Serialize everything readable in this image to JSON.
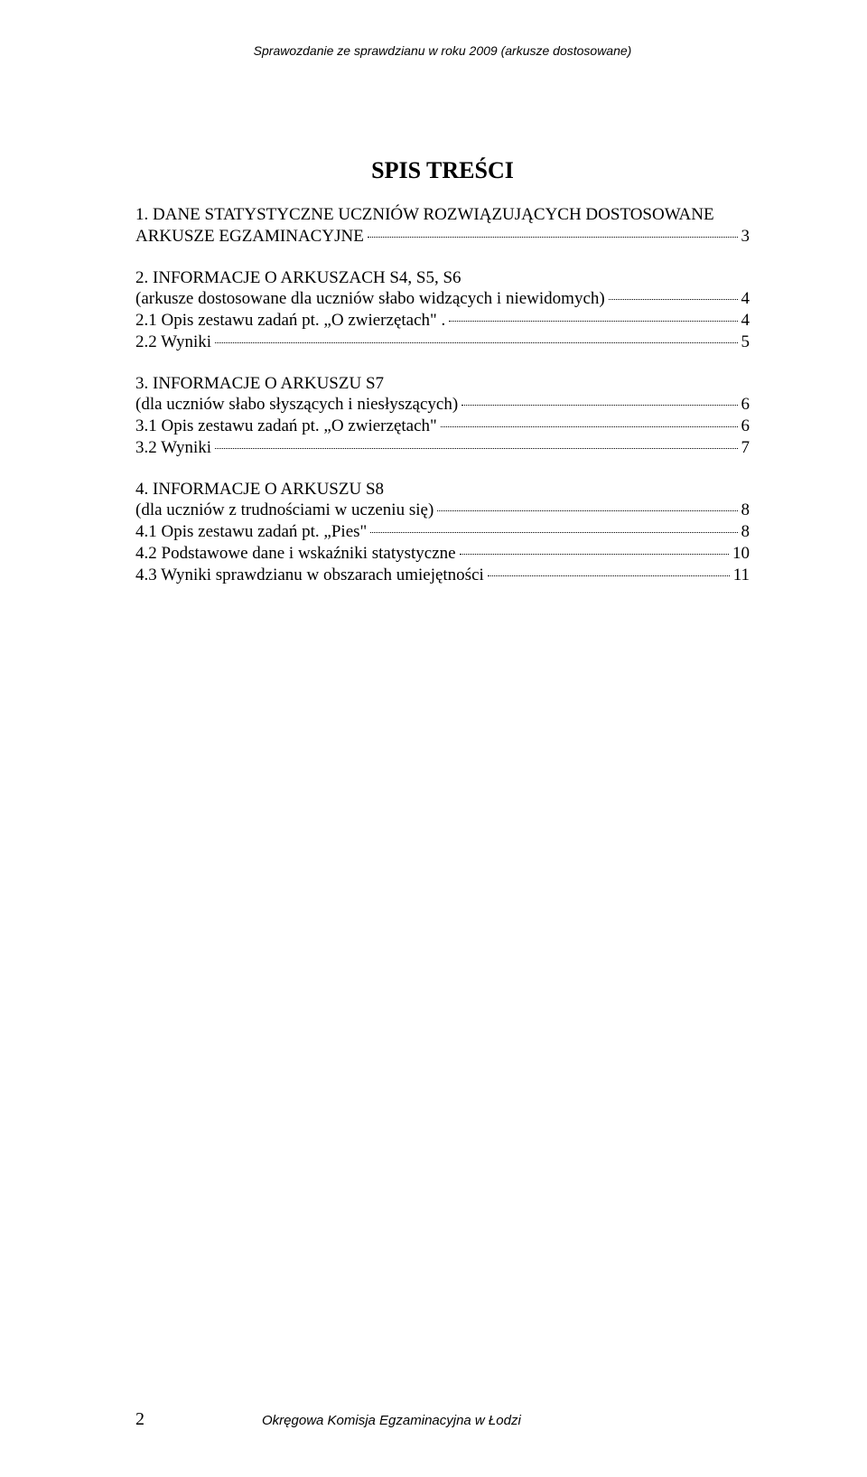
{
  "running_header": "Sprawozdanie ze sprawdzianu w roku 2009 (arkusze dostosowane)",
  "toc_title": "SPIS TREŚCI",
  "entries": [
    {
      "lines": [
        {
          "text": "1. DANE STATYSTYCZNE UCZNIÓW ROZWIĄZUJĄCYCH DOSTOSOWANE",
          "page": ""
        },
        {
          "text": "ARKUSZE EGZAMINACYJNE",
          "page": "3"
        }
      ]
    },
    {
      "lines": [
        {
          "text": "2. INFORMACJE O ARKUSZACH S4, S5, S6",
          "page": ""
        },
        {
          "text": "(arkusze dostosowane dla uczniów słabo widzących i niewidomych)",
          "page": "4"
        },
        {
          "text": "2.1 Opis zestawu zadań pt. „O zwierzętach\" .",
          "page": "4"
        },
        {
          "text": "2.2 Wyniki",
          "page": "5"
        }
      ]
    },
    {
      "lines": [
        {
          "text": "3. INFORMACJE O ARKUSZU S7",
          "page": ""
        },
        {
          "text": "(dla uczniów słabo słyszących i niesłyszących)",
          "page": "6"
        },
        {
          "text": "3.1 Opis zestawu zadań pt. „O zwierzętach\" ",
          "page": "6"
        },
        {
          "text": "3.2 Wyniki",
          "page": "7"
        }
      ]
    },
    {
      "lines": [
        {
          "text": "4. INFORMACJE O ARKUSZU S8",
          "page": ""
        },
        {
          "text": "(dla uczniów z trudnościami w uczeniu się)",
          "page": "8"
        },
        {
          "text": "4.1 Opis zestawu zadań pt. „Pies\"",
          "page": "8"
        },
        {
          "text": "4.2 Podstawowe dane i wskaźniki statystyczne",
          "page": "10"
        },
        {
          "text": "4.3 Wyniki sprawdzianu w obszarach umiejętności",
          "page": "11"
        }
      ]
    }
  ],
  "footer_pagenum": "2",
  "footer_text": "Okręgowa Komisja Egzaminacyjna w Łodzi"
}
